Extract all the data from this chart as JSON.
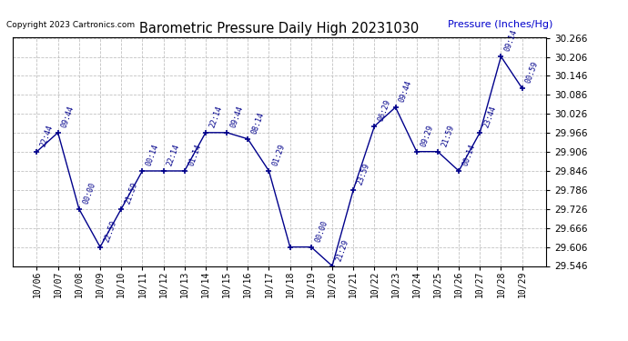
{
  "title": "Barometric Pressure Daily High 20231030",
  "copyright": "Copyright 2023 Cartronics.com",
  "ylabel": "Pressure (Inches/Hg)",
  "ylabel_color": "#0000cc",
  "line_color": "#00008B",
  "marker_color": "#00008B",
  "background_color": "#ffffff",
  "grid_color": "#bbbbbb",
  "x_labels": [
    "10/06",
    "10/07",
    "10/08",
    "10/09",
    "10/10",
    "10/11",
    "10/12",
    "10/13",
    "10/14",
    "10/15",
    "10/16",
    "10/17",
    "10/18",
    "10/19",
    "10/20",
    "10/21",
    "10/22",
    "10/23",
    "10/24",
    "10/25",
    "10/26",
    "10/27",
    "10/28",
    "10/29"
  ],
  "y_values": [
    29.907,
    29.967,
    29.726,
    29.606,
    29.726,
    29.846,
    29.846,
    29.846,
    29.967,
    29.967,
    29.947,
    29.846,
    29.606,
    29.606,
    29.546,
    29.786,
    29.987,
    30.047,
    29.907,
    29.907,
    29.846,
    29.967,
    30.207,
    30.107
  ],
  "annotations": [
    "22:44",
    "09:44",
    "00:00",
    "22:59",
    "21:59",
    "00:14",
    "22:14",
    "01:14",
    "22:14",
    "09:44",
    "08:14",
    "01:29",
    "",
    "00:00",
    "21:29",
    "23:59",
    "06:29",
    "09:44",
    "09:29",
    "21:59",
    "00:14",
    "23:44",
    "09:14",
    "00:59"
  ],
  "ylim_min": 29.546,
  "ylim_max": 30.267,
  "ytick_step": 0.06,
  "figwidth": 6.9,
  "figheight": 3.75,
  "dpi": 100
}
